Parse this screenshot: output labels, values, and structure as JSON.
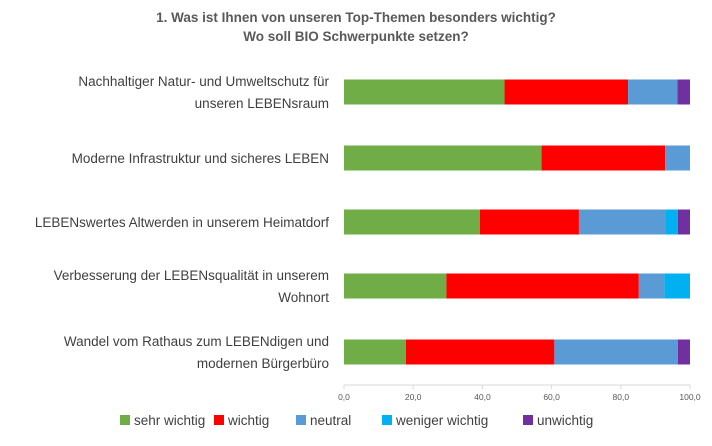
{
  "chart_data": {
    "type": "bar",
    "orientation": "horizontal",
    "stacked": true,
    "title_lines": [
      "1. Was ist Ihnen von unseren Top-Themen besonders wichtig?",
      "Wo soll BIO Schwerpunkte setzen?"
    ],
    "categories": [
      [
        "Nachhaltiger Natur- und Umweltschutz für",
        "unseren LEBENsraum"
      ],
      [
        "Moderne Infrastruktur und sicheres LEBEN"
      ],
      [
        "LEBENswertes Altwerden in unserem Heimatdorf"
      ],
      [
        "Verbesserung der LEBENsqualität in unserem",
        "Wohnort"
      ],
      [
        "Wandel vom Rathaus zum LEBENdigen und",
        "modernen Bürgerbüro"
      ]
    ],
    "series": [
      {
        "name": "sehr wichtig",
        "color": "#70ad47",
        "values": [
          46.4,
          57.1,
          39.3,
          29.6,
          17.9
        ]
      },
      {
        "name": "wichtig",
        "color": "#ff0000",
        "values": [
          35.7,
          35.7,
          28.6,
          55.6,
          42.9
        ]
      },
      {
        "name": "neutral",
        "color": "#5b9bd5",
        "values": [
          14.3,
          7.2,
          25.0,
          7.4,
          35.7
        ]
      },
      {
        "name": "weniger wichtig",
        "color": "#00b0f0",
        "values": [
          0.0,
          0.0,
          3.6,
          7.4,
          0.0
        ]
      },
      {
        "name": "unwichtig",
        "color": "#7030a0",
        "values": [
          3.6,
          0.0,
          3.5,
          0.0,
          3.5
        ]
      }
    ],
    "xlim": [
      0,
      100
    ],
    "xticks": [
      "0,0",
      "20,0",
      "40,0",
      "60,0",
      "80,0",
      "100,0"
    ],
    "grid": false,
    "legend_position": "bottom"
  }
}
